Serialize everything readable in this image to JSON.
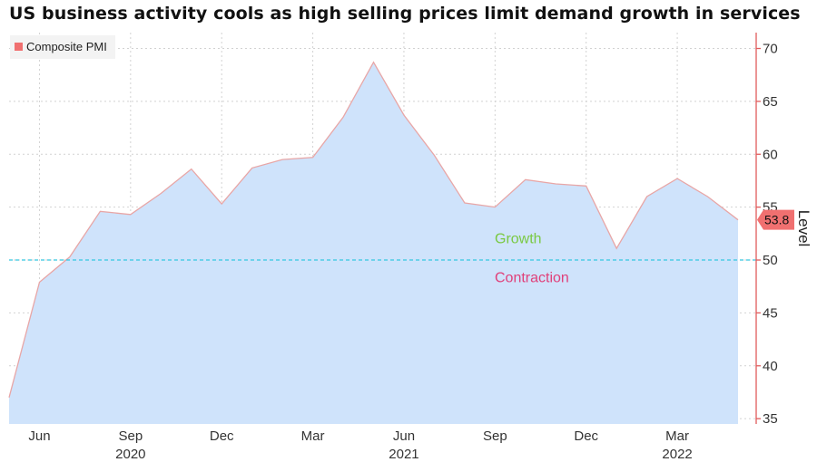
{
  "title": "US business activity cools as high selling prices limit demand growth in services",
  "chart_data": {
    "type": "area",
    "series": [
      {
        "name": "Composite PMI",
        "values": [
          37.0,
          47.9,
          50.3,
          54.6,
          54.3,
          56.3,
          58.6,
          55.3,
          58.7,
          59.5,
          59.7,
          63.5,
          68.7,
          63.7,
          59.9,
          55.4,
          55.0,
          57.6,
          57.2,
          57.0,
          51.1,
          56.0,
          57.7,
          56.0,
          53.8
        ]
      }
    ],
    "x": [
      "2020-05",
      "2020-06",
      "2020-07",
      "2020-08",
      "2020-09",
      "2020-10",
      "2020-11",
      "2020-12",
      "2021-01",
      "2021-02",
      "2021-03",
      "2021-04",
      "2021-05",
      "2021-06",
      "2021-07",
      "2021-08",
      "2021-09",
      "2021-10",
      "2021-11",
      "2021-12",
      "2022-01",
      "2022-02",
      "2022-03",
      "2022-04",
      "2022-05"
    ],
    "x_ticks": [
      {
        "label": "Jun",
        "index": 1
      },
      {
        "label": "Sep",
        "index": 4
      },
      {
        "label": "Dec",
        "index": 7
      },
      {
        "label": "Mar",
        "index": 10
      },
      {
        "label": "Jun",
        "index": 13
      },
      {
        "label": "Sep",
        "index": 16
      },
      {
        "label": "Dec",
        "index": 19
      },
      {
        "label": "Mar",
        "index": 22
      }
    ],
    "x_years": [
      {
        "label": "2020",
        "index": 4
      },
      {
        "label": "2021",
        "index": 13
      },
      {
        "label": "2022",
        "index": 22
      }
    ],
    "ylim": [
      34.5,
      71.5
    ],
    "y_ticks": [
      35,
      40,
      45,
      50,
      55,
      60,
      65,
      70
    ],
    "ylabel": "Level",
    "reference_line": {
      "value": 50
    },
    "annotations": {
      "above": "Growth",
      "below": "Contraction"
    },
    "last_value_label": "53.8",
    "legend": "top-left",
    "grid": true,
    "colors": {
      "fill": "#cfe3fb",
      "line": "#e8a6a6",
      "axis": "#e05c5c",
      "reference": "#35c8e0",
      "growth": "#7ac943",
      "contraction": "#e0407a",
      "grid": "#d2d2d2",
      "marker": "#f07070"
    }
  }
}
